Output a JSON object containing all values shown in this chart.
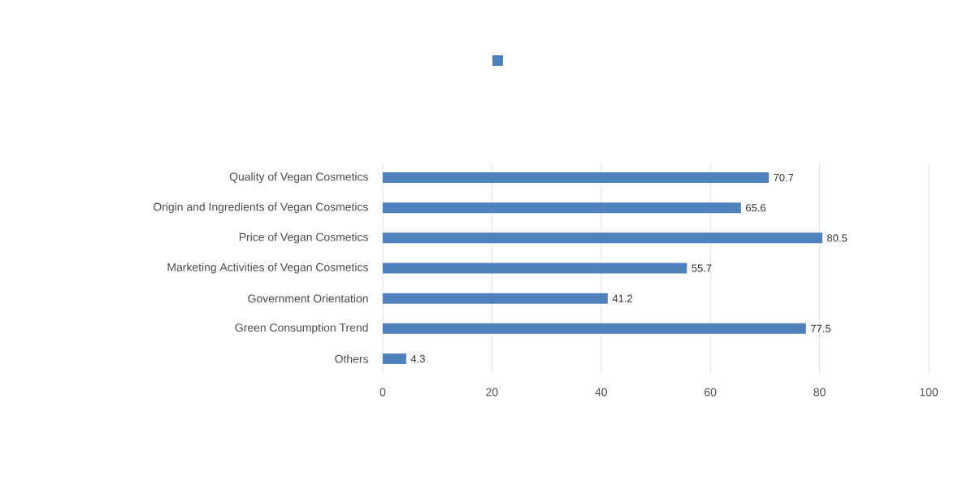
{
  "chart_data": {
    "type": "bar",
    "orientation": "horizontal",
    "categories": [
      "Quality of Vegan Cosmetics",
      "Origin and Ingredients of Vegan Cosmetics",
      "Price of Vegan Cosmetics",
      "Marketing Activities of Vegan Cosmetics",
      "Government Orientation",
      "Green Consumption Trend",
      "Others"
    ],
    "values": [
      70.7,
      65.6,
      80.5,
      55.7,
      41.2,
      77.5,
      4.3
    ],
    "color": "#4f81bd",
    "xlim": [
      0,
      100
    ],
    "xticks": [
      0,
      20,
      40,
      60,
      80,
      100
    ],
    "grid": "x",
    "data_labels": true
  }
}
